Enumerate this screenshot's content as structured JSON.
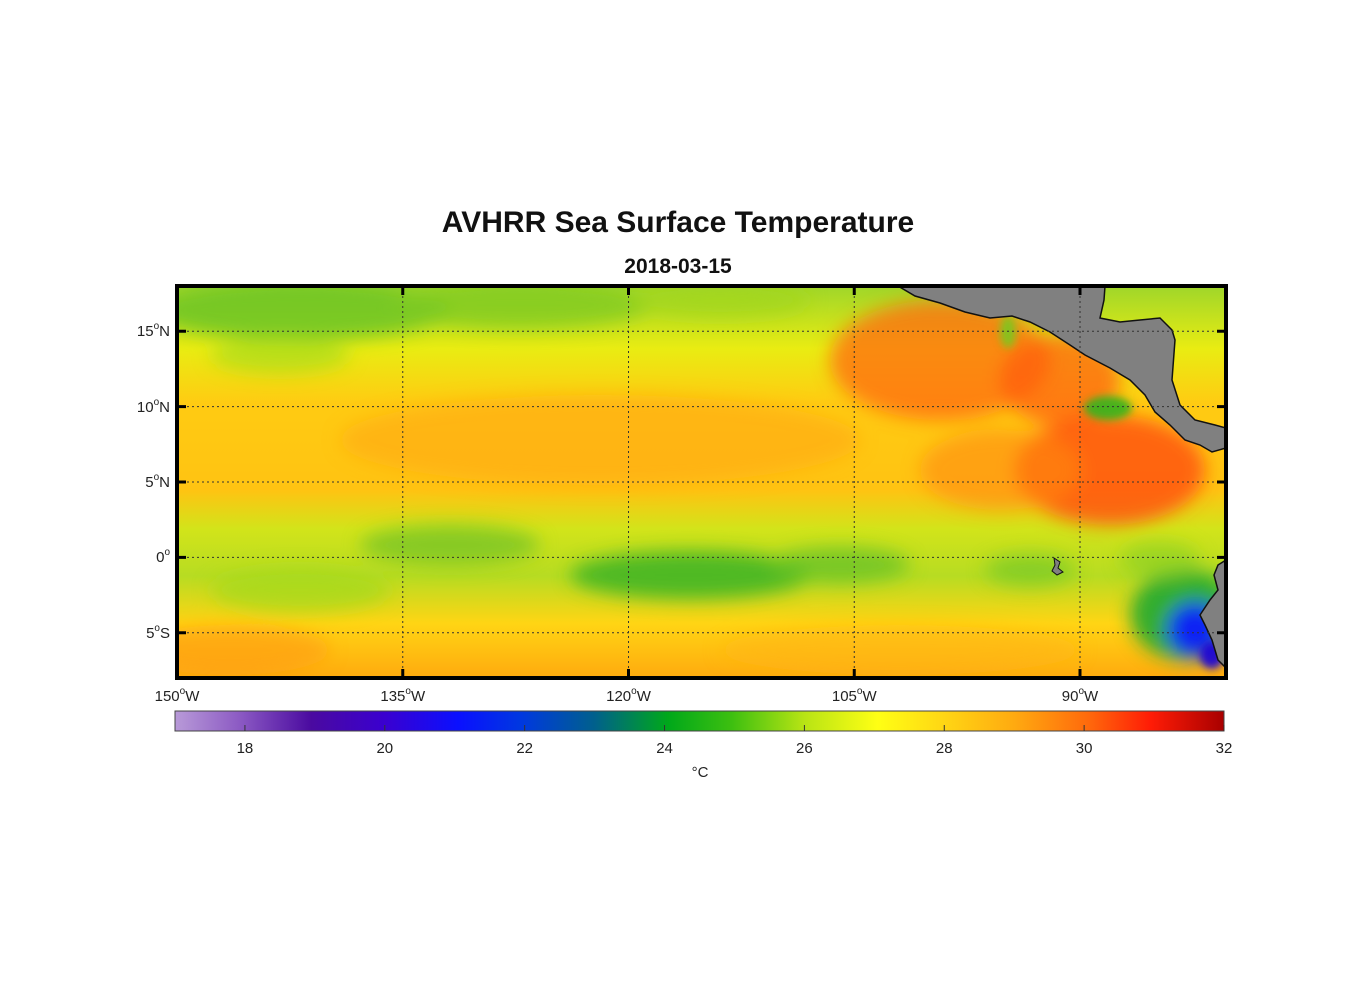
{
  "title": "AVHRR Sea Surface Temperature",
  "subtitle": "2018-03-15",
  "lat_labels": [
    {
      "deg": "15",
      "hem": "N",
      "lat": 15
    },
    {
      "deg": "10",
      "hem": "N",
      "lat": 10
    },
    {
      "deg": "5",
      "hem": "N",
      "lat": 5
    },
    {
      "deg": "0",
      "hem": "",
      "lat": 0
    },
    {
      "deg": "5",
      "hem": "S",
      "lat": -5
    }
  ],
  "lon_labels": [
    {
      "deg": "150",
      "hem": "W",
      "lon": -150
    },
    {
      "deg": "135",
      "hem": "W",
      "lon": -135
    },
    {
      "deg": "120",
      "hem": "W",
      "lon": -120
    },
    {
      "deg": "105",
      "hem": "W",
      "lon": -105
    },
    {
      "deg": "90",
      "hem": "W",
      "lon": -90
    }
  ],
  "colorbar": {
    "min": 17,
    "max": 32,
    "ticks": [
      "18",
      "20",
      "22",
      "24",
      "26",
      "28",
      "30",
      "32"
    ],
    "unit": "°C"
  },
  "colors": {
    "land": "#808080",
    "frame": "#000000"
  }
}
